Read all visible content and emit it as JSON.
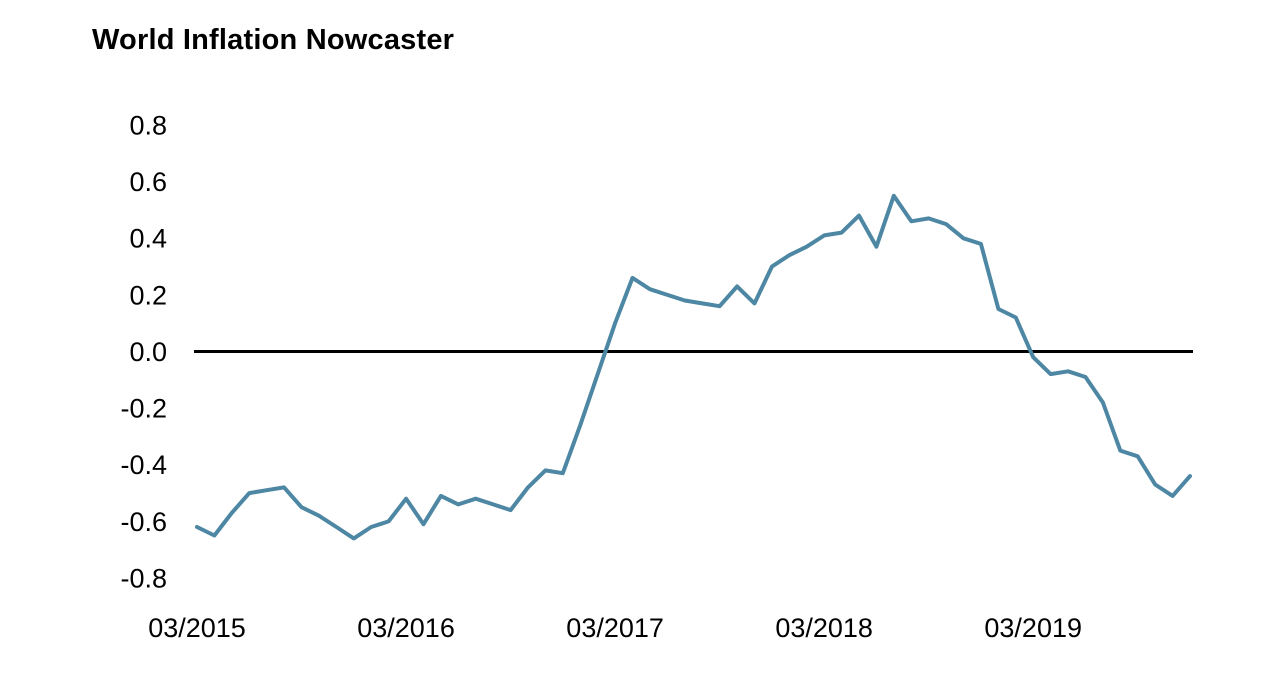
{
  "chart": {
    "title": "World Inflation Nowcaster"
  },
  "chart_data": {
    "type": "line",
    "title": "World Inflation Nowcaster",
    "series": [
      {
        "name": "World Inflation Nowcaster",
        "values": [
          -0.62,
          -0.65,
          -0.57,
          -0.5,
          -0.49,
          -0.48,
          -0.55,
          -0.58,
          -0.62,
          -0.66,
          -0.62,
          -0.6,
          -0.52,
          -0.61,
          -0.51,
          -0.54,
          -0.52,
          -0.54,
          -0.56,
          -0.48,
          -0.42,
          -0.43,
          -0.26,
          -0.08,
          0.1,
          0.26,
          0.22,
          0.2,
          0.18,
          0.17,
          0.16,
          0.23,
          0.17,
          0.3,
          0.34,
          0.37,
          0.41,
          0.42,
          0.48,
          0.37,
          0.55,
          0.46,
          0.47,
          0.45,
          0.4,
          0.38,
          0.15,
          0.12,
          -0.02,
          -0.08,
          -0.07,
          -0.09,
          -0.18,
          -0.35,
          -0.37,
          -0.47,
          -0.51,
          -0.44
        ]
      }
    ],
    "x_tick_labels": [
      "03/2015",
      "03/2016",
      "03/2017",
      "03/2018",
      "03/2019"
    ],
    "x_tick_positions": [
      0,
      12,
      24,
      36,
      48
    ],
    "y_tick_labels": [
      "0.8",
      "0.6",
      "0.4",
      "0.2",
      "0.0",
      "-0.2",
      "-0.4",
      "-0.6",
      "-0.8"
    ],
    "ylim": [
      -0.8,
      0.8
    ],
    "xlabel": "",
    "ylabel": "",
    "grid": false,
    "legend": "none",
    "zero_baseline": true,
    "line_color": "#4d87a3",
    "zero_line_color": "#000000",
    "text_color": "#000000"
  }
}
